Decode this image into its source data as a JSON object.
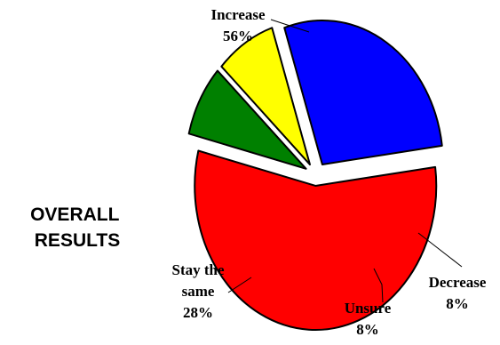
{
  "chart_data": {
    "type": "pie",
    "title": "OVERALL RESULTS",
    "title_lines": [
      "OVERALL",
      "RESULTS"
    ],
    "slices": [
      {
        "category": "Increase",
        "label_lines": [
          "Increase"
        ],
        "value": 56,
        "value_label": "56%",
        "color": "#ff0000",
        "exploded": true
      },
      {
        "category": "Decrease",
        "label_lines": [
          "Decrease"
        ],
        "value": 8,
        "value_label": "8%",
        "color": "#008000",
        "exploded": true
      },
      {
        "category": "Unsure",
        "label_lines": [
          "Unsure"
        ],
        "value": 8,
        "value_label": "8%",
        "color": "#ffff00",
        "exploded": true
      },
      {
        "category": "Stay the same",
        "label_lines": [
          "Stay the",
          "same"
        ],
        "value": 28,
        "value_label": "28%",
        "color": "#0000ff",
        "exploded": true
      }
    ],
    "legend": "none"
  }
}
